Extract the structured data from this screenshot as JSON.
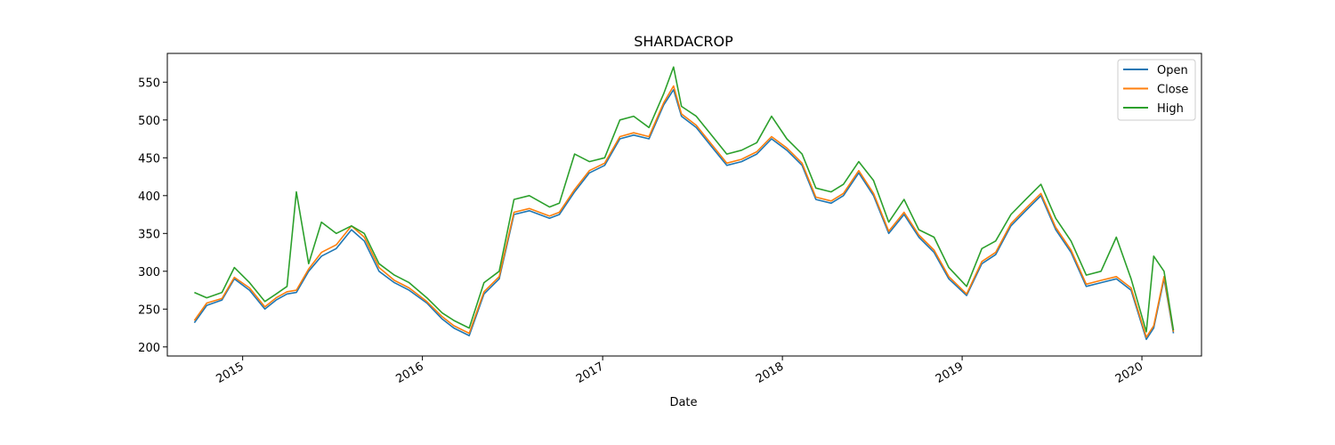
{
  "chart_data": {
    "type": "line",
    "title": "SHARDACROP",
    "xlabel": "Date",
    "ylabel": "",
    "xlim": [
      "2014-08-01",
      "2020-05-01"
    ],
    "ylim": [
      188,
      588
    ],
    "x_ticks": [
      "2015",
      "2016",
      "2017",
      "2018",
      "2019",
      "2020"
    ],
    "y_ticks": [
      200,
      250,
      300,
      350,
      400,
      450,
      500,
      550
    ],
    "grid": false,
    "legend": "upper right",
    "x": [
      "2014-09-25",
      "2014-10-20",
      "2014-11-20",
      "2014-12-15",
      "2015-01-15",
      "2015-02-15",
      "2015-03-10",
      "2015-04-01",
      "2015-04-20",
      "2015-05-15",
      "2015-06-10",
      "2015-07-10",
      "2015-08-10",
      "2015-09-05",
      "2015-10-05",
      "2015-11-05",
      "2015-12-05",
      "2016-01-10",
      "2016-02-10",
      "2016-03-05",
      "2016-04-05",
      "2016-05-05",
      "2016-06-05",
      "2016-07-05",
      "2016-08-05",
      "2016-09-15",
      "2016-10-05",
      "2016-11-05",
      "2016-12-05",
      "2017-01-05",
      "2017-02-05",
      "2017-03-05",
      "2017-04-05",
      "2017-05-05",
      "2017-05-25",
      "2017-06-10",
      "2017-07-10",
      "2017-08-10",
      "2017-09-10",
      "2017-10-10",
      "2017-11-10",
      "2017-12-10",
      "2018-01-10",
      "2018-02-10",
      "2018-03-10",
      "2018-04-10",
      "2018-05-05",
      "2018-06-05",
      "2018-07-05",
      "2018-08-05",
      "2018-09-05",
      "2018-10-05",
      "2018-11-05",
      "2018-12-05",
      "2019-01-10",
      "2019-02-10",
      "2019-03-10",
      "2019-04-10",
      "2019-05-10",
      "2019-06-10",
      "2019-07-10",
      "2019-08-10",
      "2019-09-10",
      "2019-10-10",
      "2019-11-10",
      "2019-12-10",
      "2020-01-10",
      "2020-01-25",
      "2020-02-15",
      "2020-03-05"
    ],
    "series": [
      {
        "name": "Open",
        "color": "#1f77b4",
        "values": [
          232,
          255,
          262,
          290,
          275,
          250,
          262,
          270,
          272,
          300,
          320,
          330,
          355,
          340,
          300,
          285,
          275,
          258,
          237,
          225,
          215,
          270,
          290,
          375,
          380,
          370,
          375,
          405,
          430,
          440,
          475,
          480,
          475,
          520,
          540,
          505,
          490,
          465,
          440,
          445,
          455,
          475,
          460,
          440,
          395,
          390,
          400,
          430,
          400,
          350,
          375,
          345,
          325,
          290,
          268,
          310,
          322,
          360,
          380,
          400,
          355,
          325,
          280,
          285,
          290,
          275,
          210,
          225,
          290,
          218
        ]
      },
      {
        "name": "Close",
        "color": "#ff7f0e",
        "values": [
          235,
          258,
          264,
          292,
          278,
          253,
          265,
          273,
          275,
          303,
          325,
          335,
          360,
          345,
          305,
          288,
          278,
          260,
          240,
          228,
          218,
          273,
          293,
          378,
          383,
          373,
          378,
          408,
          433,
          443,
          478,
          483,
          478,
          523,
          545,
          508,
          493,
          468,
          443,
          448,
          458,
          478,
          463,
          443,
          398,
          393,
          403,
          433,
          403,
          353,
          378,
          348,
          328,
          293,
          270,
          313,
          325,
          363,
          383,
          403,
          358,
          328,
          283,
          288,
          293,
          278,
          213,
          228,
          293,
          220
        ]
      },
      {
        "name": "High",
        "color": "#2ca02c",
        "values": [
          272,
          265,
          272,
          305,
          285,
          260,
          270,
          280,
          405,
          310,
          365,
          350,
          360,
          350,
          310,
          295,
          285,
          265,
          245,
          235,
          225,
          285,
          300,
          395,
          400,
          385,
          390,
          455,
          445,
          450,
          500,
          505,
          490,
          535,
          570,
          518,
          505,
          480,
          455,
          460,
          470,
          505,
          475,
          455,
          410,
          405,
          415,
          445,
          420,
          365,
          395,
          355,
          345,
          305,
          280,
          330,
          340,
          375,
          395,
          415,
          370,
          340,
          295,
          300,
          345,
          290,
          220,
          320,
          300,
          222
        ]
      }
    ]
  }
}
